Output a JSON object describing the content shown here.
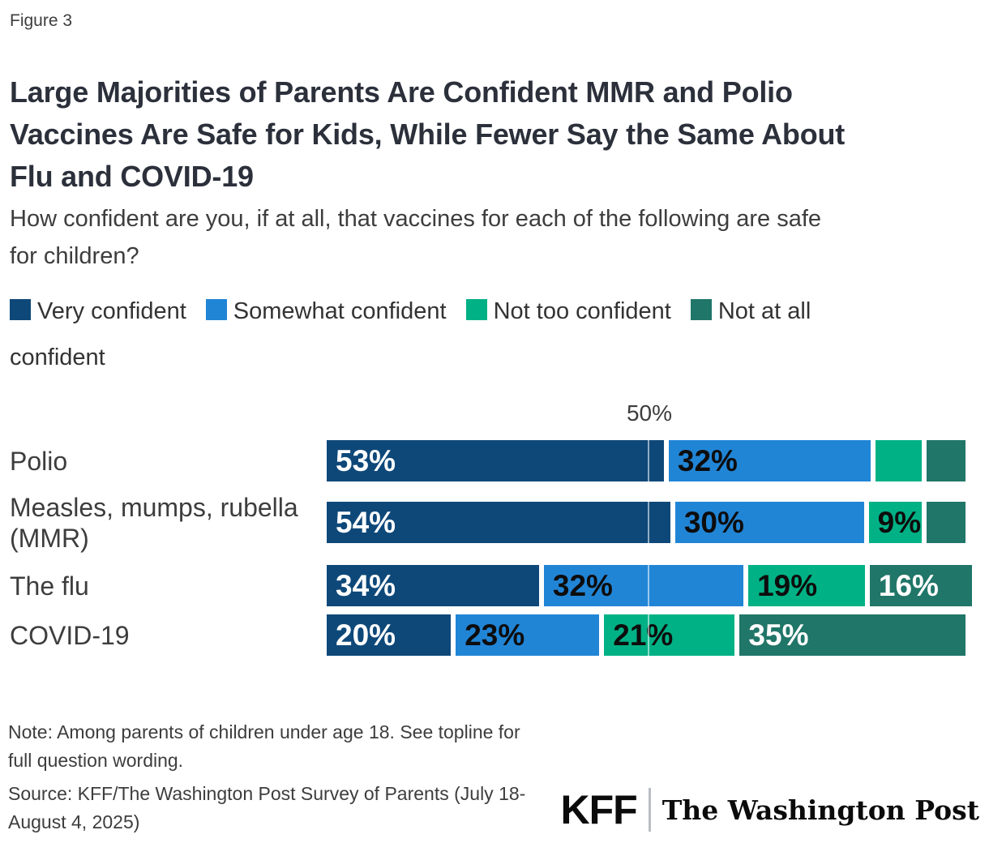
{
  "figure_label": "Figure 3",
  "title_lines": [
    "Large Majorities of Parents Are Confident MMR and Polio",
    "Vaccines Are Safe for Kids, While Fewer Say the Same About",
    "Flu and COVID-19"
  ],
  "subtitle_lines": [
    "How confident are you, if at all, that vaccines for each of the following are safe",
    "for children?"
  ],
  "note_lines": [
    "Note: Among parents of children under age 18. See topline for",
    "full question wording."
  ],
  "source_lines": [
    "Source: KFF/The Washington Post Survey of Parents (July 18-",
    "August 4, 2025)"
  ],
  "logos": {
    "kff": "KFF",
    "washington_post": "The Washington Post"
  },
  "chart_data": {
    "type": "bar",
    "stacked": true,
    "orientation": "horizontal",
    "axis": {
      "tick_label": "50%",
      "tick_value": 50,
      "range": [
        0,
        100
      ],
      "gridline_at": 50
    },
    "categories": [
      "Polio",
      "Measles, mumps, rubella (MMR)",
      "The flu",
      "COVID-19"
    ],
    "legend": [
      {
        "label": "Very confident",
        "color": "#0e4879",
        "text_color": "#ffffff"
      },
      {
        "label": "Somewhat confident",
        "color": "#2185d6",
        "text_color": "#0d0d0d"
      },
      {
        "label": "Not too confident",
        "color": "#00b185",
        "text_color": "#0d0d0d"
      },
      {
        "label": "Not at all confident",
        "color": "#207668",
        "text_color": "#ffffff"
      }
    ],
    "series": [
      {
        "name": "Very confident",
        "values": [
          53,
          54,
          34,
          20
        ]
      },
      {
        "name": "Somewhat confident",
        "values": [
          32,
          30,
          32,
          23
        ]
      },
      {
        "name": "Not too confident",
        "values": [
          8,
          9,
          19,
          21
        ]
      },
      {
        "name": "Not at all confident",
        "values": [
          6,
          6,
          16,
          35
        ]
      }
    ],
    "data_labels": [
      [
        "53%",
        "32%",
        "",
        ""
      ],
      [
        "54%",
        "30%",
        "9%",
        ""
      ],
      [
        "34%",
        "32%",
        "19%",
        "16%"
      ],
      [
        "20%",
        "23%",
        "21%",
        "35%"
      ]
    ]
  }
}
